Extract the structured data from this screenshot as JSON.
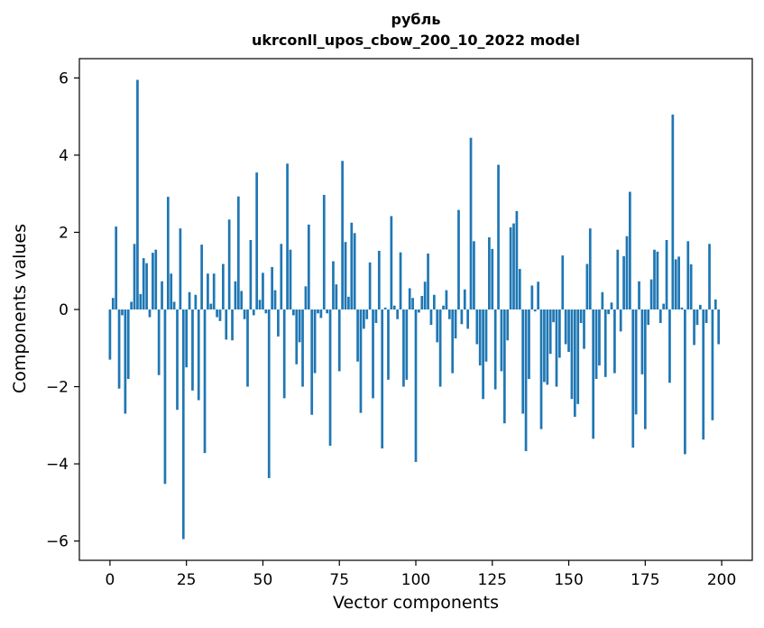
{
  "chart_data": {
    "type": "bar",
    "title": "рубль",
    "subtitle": "ukrconll_upos_cbow_200_10_2022 model",
    "xlabel": "Vector components",
    "ylabel": "Components values",
    "xlim": [
      -10,
      210
    ],
    "ylim": [
      -6.5,
      6.5
    ],
    "xticks": [
      0,
      25,
      50,
      75,
      100,
      125,
      150,
      175,
      200
    ],
    "yticks": [
      -6,
      -4,
      -2,
      0,
      2,
      4,
      6
    ],
    "ytick_labels": [
      "−6",
      "−4",
      "−2",
      "0",
      "2",
      "4",
      "6"
    ],
    "grid": false,
    "color": "#1f77b4",
    "x": [
      0,
      1,
      2,
      3,
      4,
      5,
      6,
      7,
      8,
      9,
      10,
      11,
      12,
      13,
      14,
      15,
      16,
      17,
      18,
      19,
      20,
      21,
      22,
      23,
      24,
      25,
      26,
      27,
      28,
      29,
      30,
      31,
      32,
      33,
      34,
      35,
      36,
      37,
      38,
      39,
      40,
      41,
      42,
      43,
      44,
      45,
      46,
      47,
      48,
      49,
      50,
      51,
      52,
      53,
      54,
      55,
      56,
      57,
      58,
      59,
      60,
      61,
      62,
      63,
      64,
      65,
      66,
      67,
      68,
      69,
      70,
      71,
      72,
      73,
      74,
      75,
      76,
      77,
      78,
      79,
      80,
      81,
      82,
      83,
      84,
      85,
      86,
      87,
      88,
      89,
      90,
      91,
      92,
      93,
      94,
      95,
      96,
      97,
      98,
      99,
      100,
      101,
      102,
      103,
      104,
      105,
      106,
      107,
      108,
      109,
      110,
      111,
      112,
      113,
      114,
      115,
      116,
      117,
      118,
      119,
      120,
      121,
      122,
      123,
      124,
      125,
      126,
      127,
      128,
      129,
      130,
      131,
      132,
      133,
      134,
      135,
      136,
      137,
      138,
      139,
      140,
      141,
      142,
      143,
      144,
      145,
      146,
      147,
      148,
      149,
      150,
      151,
      152,
      153,
      154,
      155,
      156,
      157,
      158,
      159,
      160,
      161,
      162,
      163,
      164,
      165,
      166,
      167,
      168,
      169,
      170,
      171,
      172,
      173,
      174,
      175,
      176,
      177,
      178,
      179,
      180,
      181,
      182,
      183,
      184,
      185,
      186,
      187,
      188,
      189,
      190,
      191,
      192,
      193,
      194,
      195,
      196,
      197,
      198,
      199
    ],
    "values": [
      -1.3,
      0.3,
      2.15,
      -2.05,
      -0.15,
      -2.7,
      -1.8,
      0.2,
      1.7,
      5.95,
      0.4,
      1.33,
      1.2,
      -0.2,
      1.47,
      1.55,
      -1.7,
      0.73,
      -4.52,
      2.92,
      0.93,
      0.2,
      -2.6,
      2.1,
      -5.95,
      -1.5,
      0.45,
      -2.1,
      0.38,
      -2.35,
      1.68,
      -3.72,
      0.93,
      0.15,
      0.93,
      -0.2,
      -0.3,
      1.18,
      -0.78,
      2.33,
      -0.8,
      0.73,
      2.93,
      0.48,
      -0.25,
      -2.0,
      1.8,
      -0.15,
      3.55,
      0.25,
      0.95,
      -0.1,
      -4.37,
      1.1,
      0.5,
      -0.7,
      1.7,
      -2.3,
      3.78,
      1.55,
      -0.15,
      -1.42,
      -0.85,
      -2.0,
      0.6,
      2.2,
      -2.73,
      -1.65,
      -0.1,
      -0.22,
      2.97,
      -0.1,
      -3.53,
      1.25,
      0.65,
      -1.6,
      3.85,
      1.75,
      0.33,
      2.25,
      1.98,
      -1.35,
      -2.68,
      -0.5,
      -0.25,
      1.22,
      -2.3,
      -0.35,
      1.52,
      -3.6,
      0.05,
      -1.82,
      2.42,
      0.1,
      -0.25,
      1.48,
      -2.0,
      -1.82,
      0.55,
      0.3,
      -3.95,
      -0.08,
      0.35,
      0.72,
      1.45,
      -0.4,
      0.38,
      -0.85,
      -2.0,
      0.1,
      0.5,
      -0.25,
      -1.65,
      -0.75,
      2.58,
      -0.38,
      0.52,
      -0.5,
      4.45,
      1.77,
      -0.9,
      -1.45,
      -2.32,
      -1.35,
      1.87,
      1.57,
      -2.07,
      3.75,
      -1.6,
      -2.95,
      -0.8,
      2.13,
      2.23,
      2.55,
      1.05,
      -2.7,
      -3.67,
      -1.8,
      0.62,
      -0.05,
      0.72,
      -3.1,
      -1.88,
      -1.95,
      -1.15,
      -0.33,
      -2.0,
      -1.25,
      1.4,
      -0.9,
      -1.1,
      -2.32,
      -2.78,
      -2.45,
      -0.35,
      -1.02,
      1.18,
      2.1,
      -3.35,
      -1.8,
      -1.45,
      0.45,
      -1.75,
      -0.12,
      0.18,
      -1.65,
      1.55,
      -0.57,
      1.38,
      1.9,
      3.05,
      -3.58,
      -2.72,
      0.73,
      -1.68,
      -3.1,
      -0.4,
      0.78,
      1.55,
      1.5,
      -0.35,
      0.15,
      1.8,
      -1.9,
      5.05,
      1.3,
      1.37,
      0.05,
      -3.75,
      1.77,
      1.17,
      -0.92,
      -0.4,
      0.12,
      -3.37,
      -0.35,
      1.7,
      -2.87,
      0.26,
      -0.9
    ]
  }
}
